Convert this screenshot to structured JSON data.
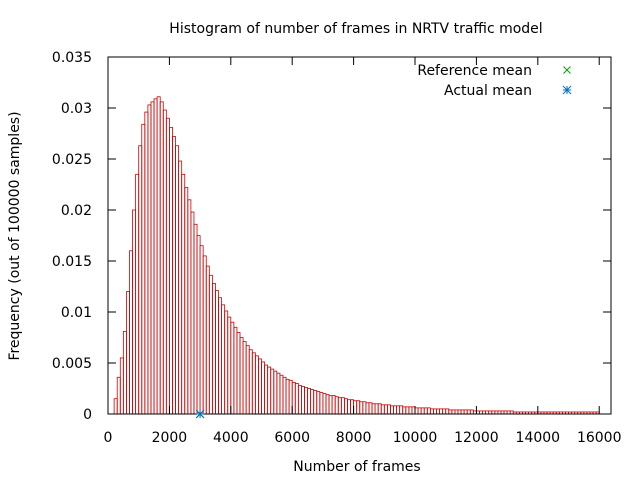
{
  "chart_data": {
    "type": "bar",
    "title": "Histogram of number of frames in NRTV traffic model",
    "xlabel": "Number of frames",
    "ylabel": "Frequency (out of 100000 samples)",
    "xlim": [
      0,
      16384
    ],
    "ylim": [
      0,
      0.035
    ],
    "xticks": [
      0,
      2000,
      4000,
      6000,
      8000,
      10000,
      12000,
      14000,
      16000
    ],
    "yticks": [
      0,
      0.005,
      0.01,
      0.015,
      0.02,
      0.025,
      0.03,
      0.035
    ],
    "xtick_labels": [
      "0",
      "2000",
      "4000",
      "6000",
      "8000",
      "10000",
      "12000",
      "14000",
      "16000"
    ],
    "ytick_labels": [
      "0",
      "0.005",
      "0.01",
      "0.015",
      "0.02",
      "0.025",
      "0.03",
      "0.035"
    ],
    "grid": false,
    "legend_position": "top-right",
    "bin_start": 200,
    "bin_width": 100,
    "values": [
      0.0015,
      0.0036,
      0.0055,
      0.0081,
      0.012,
      0.016,
      0.02,
      0.0235,
      0.0263,
      0.0284,
      0.0296,
      0.0303,
      0.0306,
      0.0309,
      0.0311,
      0.0306,
      0.0298,
      0.029,
      0.0281,
      0.0272,
      0.0263,
      0.0248,
      0.0235,
      0.0222,
      0.021,
      0.0198,
      0.0186,
      0.0175,
      0.0165,
      0.0155,
      0.0145,
      0.0136,
      0.0128,
      0.0121,
      0.0114,
      0.0107,
      0.0101,
      0.0095,
      0.009,
      0.0085,
      0.008,
      0.0075,
      0.0071,
      0.0067,
      0.0063,
      0.006,
      0.0057,
      0.0054,
      0.0051,
      0.0048,
      0.0046,
      0.0044,
      0.0042,
      0.004,
      0.0038,
      0.0036,
      0.0034,
      0.0033,
      0.0031,
      0.003,
      0.0028,
      0.0027,
      0.0026,
      0.0025,
      0.0024,
      0.0023,
      0.0022,
      0.0021,
      0.002,
      0.0019,
      0.0018,
      0.0018,
      0.0017,
      0.0016,
      0.0016,
      0.0015,
      0.0014,
      0.0014,
      0.0013,
      0.0013,
      0.0012,
      0.0012,
      0.0011,
      0.0011,
      0.001,
      0.001,
      0.001,
      0.0009,
      0.0009,
      0.0009,
      0.0008,
      0.0008,
      0.0008,
      0.0008,
      0.0007,
      0.0007,
      0.0007,
      0.0007,
      0.0006,
      0.0006,
      0.0006,
      0.0006,
      0.0006,
      0.0005,
      0.0005,
      0.0005,
      0.0005,
      0.0005,
      0.0005,
      0.0004,
      0.0004,
      0.0004,
      0.0004,
      0.0004,
      0.0004,
      0.0004,
      0.0004,
      0.0003,
      0.0003,
      0.0003,
      0.0003,
      0.0003,
      0.0003,
      0.0003,
      0.0003,
      0.0003,
      0.0003,
      0.0003,
      0.0003,
      0.0003,
      0.0002,
      0.0002,
      0.0002,
      0.0002,
      0.0002,
      0.0002,
      0.0002,
      0.0002,
      0.0002,
      0.0002,
      0.0002,
      0.0002,
      0.0002,
      0.0002,
      0.0002,
      0.0002,
      0.0002,
      0.0002,
      0.0002,
      0.0002,
      0.0002,
      0.0002,
      0.0002,
      0.0002,
      0.0002,
      0.0002,
      0.0002,
      0.0002
    ],
    "bar_color": "#cc0000",
    "series": [
      {
        "name": "Reference mean",
        "marker": "x",
        "color": "#00a000",
        "x": 3000,
        "y": 0
      },
      {
        "name": "Actual mean",
        "marker": "asterisk",
        "color": "#0070c0",
        "x": 3000,
        "y": 0
      }
    ]
  }
}
